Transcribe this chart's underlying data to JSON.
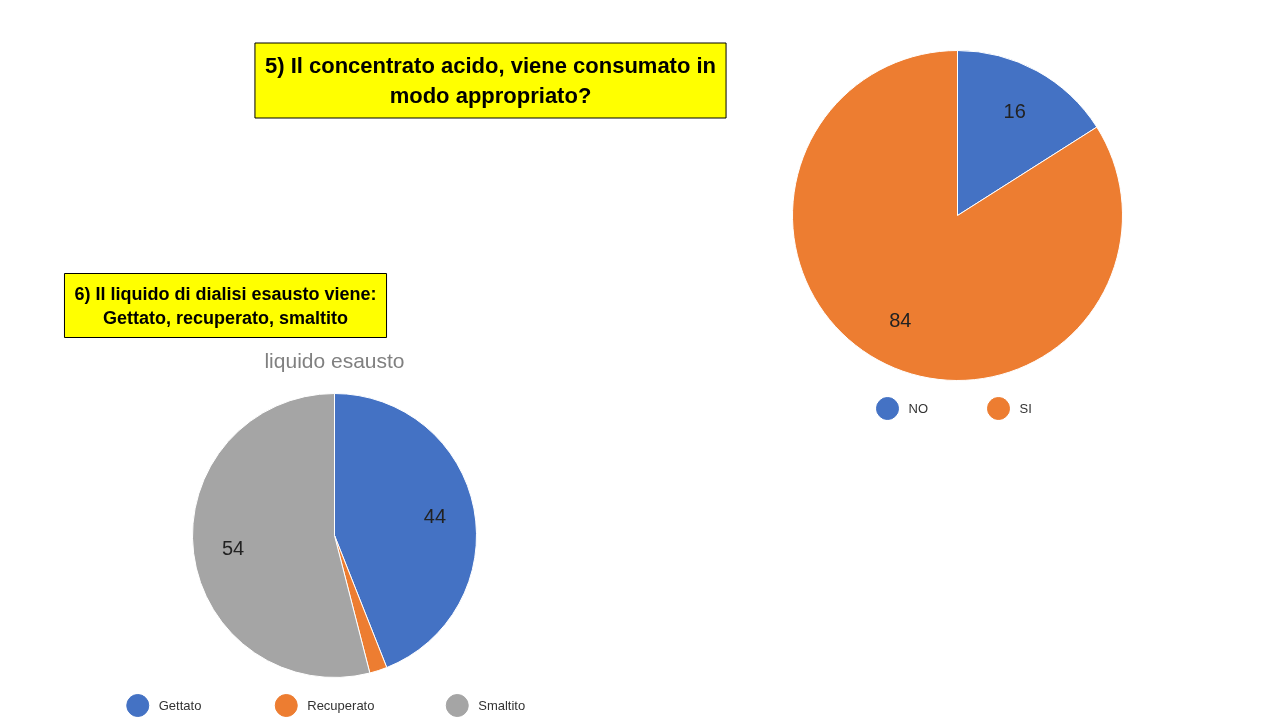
{
  "chart_data": [
    {
      "type": "pie",
      "title": "5) Il concentrato acido, viene consumato in modo appropriato?",
      "categories": [
        "NO",
        "SI"
      ],
      "values": [
        16,
        84
      ],
      "colors": [
        "#4472c4",
        "#ed7d31"
      ],
      "data_labels": true,
      "legend": "bottom"
    },
    {
      "type": "pie",
      "title": "6) Il liquido di dialisi esausto viene: Gettato, recuperato, smaltito",
      "subtitle": "liquido esausto",
      "categories": [
        "Gettato",
        "Recuperato",
        "Smaltito"
      ],
      "values": [
        44,
        2,
        54
      ],
      "colors": [
        "#4472c4",
        "#ed7d31",
        "#a5a5a5"
      ],
      "value_labels": [
        "44",
        null,
        "54"
      ],
      "legend": "bottom"
    }
  ]
}
